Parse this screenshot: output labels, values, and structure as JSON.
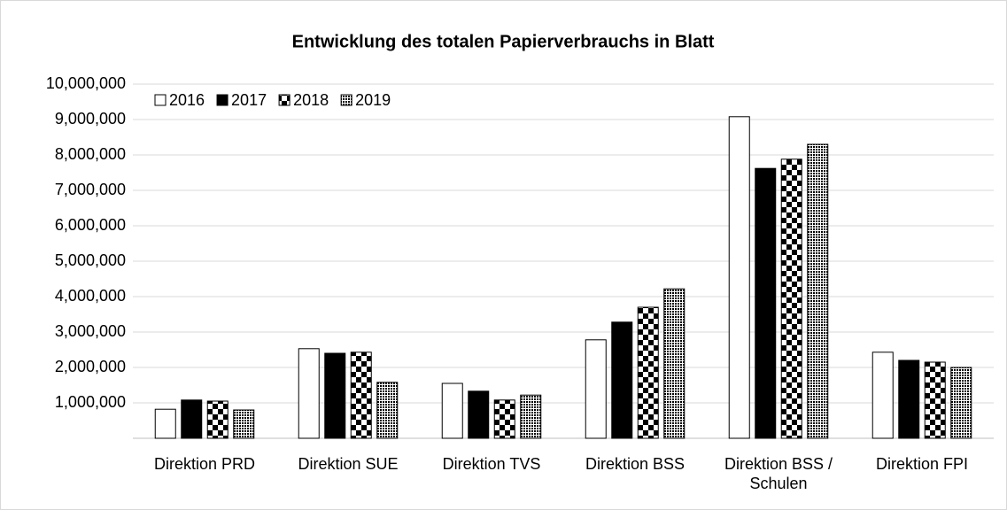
{
  "chart_data": {
    "type": "bar",
    "title": "Entwicklung des totalen Papierverbrauchs in Blatt",
    "categories": [
      "Direktion PRD",
      "Direktion SUE",
      "Direktion TVS",
      "Direktion BSS",
      "Direktion BSS / Schulen",
      "Direktion FPI"
    ],
    "series": [
      {
        "name": "2016",
        "color": "#ffffff",
        "pattern": "none",
        "values": [
          820000,
          2530000,
          1550000,
          2780000,
          9080000,
          2430000
        ]
      },
      {
        "name": "2017",
        "color": "#000000",
        "pattern": "none",
        "values": [
          1080000,
          2400000,
          1330000,
          3280000,
          7620000,
          2200000
        ]
      },
      {
        "name": "2018",
        "color": "#000000",
        "pattern": "checker",
        "values": [
          1050000,
          2430000,
          1080000,
          3700000,
          7880000,
          2150000
        ]
      },
      {
        "name": "2019",
        "color": "#000000",
        "pattern": "dots",
        "values": [
          800000,
          1580000,
          1220000,
          4220000,
          8300000,
          2000000
        ]
      }
    ],
    "ylim": [
      0,
      10000000
    ],
    "yticks": [
      {
        "value": 1000000,
        "label": "1,000,000"
      },
      {
        "value": 2000000,
        "label": "2,000,000"
      },
      {
        "value": 3000000,
        "label": "3,000,000"
      },
      {
        "value": 4000000,
        "label": "4,000,000"
      },
      {
        "value": 5000000,
        "label": "5,000,000"
      },
      {
        "value": 6000000,
        "label": "6,000,000"
      },
      {
        "value": 7000000,
        "label": "7,000,000"
      },
      {
        "value": 8000000,
        "label": "8,000,000"
      },
      {
        "value": 9000000,
        "label": "9,000,000"
      },
      {
        "value": 10000000,
        "label": "10,000,000"
      }
    ],
    "grid": true,
    "legend": "top-left"
  }
}
